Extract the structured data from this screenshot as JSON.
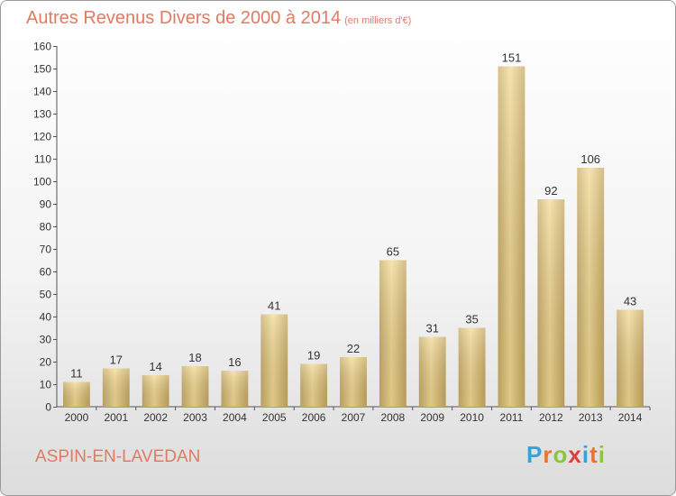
{
  "chart_data": {
    "type": "bar",
    "title": "Autres Revenus Divers de 2000 à 2014",
    "subtitle": "(en milliers d'€)",
    "categories": [
      "2000",
      "2001",
      "2002",
      "2003",
      "2004",
      "2005",
      "2006",
      "2007",
      "2008",
      "2009",
      "2010",
      "2011",
      "2012",
      "2013",
      "2014"
    ],
    "values": [
      11,
      17,
      14,
      18,
      16,
      41,
      19,
      22,
      65,
      31,
      35,
      151,
      92,
      106,
      43
    ],
    "ylim": [
      0,
      160
    ],
    "yticks": [
      0,
      10,
      20,
      30,
      40,
      50,
      60,
      70,
      80,
      90,
      100,
      110,
      120,
      130,
      140,
      150,
      160
    ],
    "grid": false,
    "bar_color": "#e9cf82"
  },
  "footer": {
    "commune": "ASPIN-EN-LAVEDAN",
    "logo_letters": [
      "P",
      "r",
      "o",
      "x",
      "i",
      "t",
      "i"
    ],
    "logo_colors": [
      "#3aa0d8",
      "#e8742d",
      "#8cc63f",
      "#e23d3d",
      "#3aa0d8",
      "#e8742d",
      "#8cc63f"
    ]
  }
}
